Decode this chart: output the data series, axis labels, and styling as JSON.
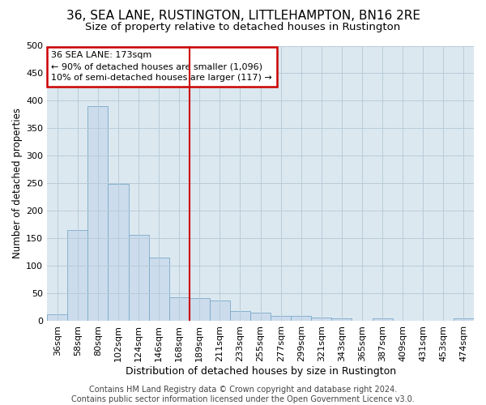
{
  "title1": "36, SEA LANE, RUSTINGTON, LITTLEHAMPTON, BN16 2RE",
  "title2": "Size of property relative to detached houses in Rustington",
  "xlabel": "Distribution of detached houses by size in Rustington",
  "ylabel": "Number of detached properties",
  "categories": [
    "36sqm",
    "58sqm",
    "80sqm",
    "102sqm",
    "124sqm",
    "146sqm",
    "168sqm",
    "189sqm",
    "211sqm",
    "233sqm",
    "255sqm",
    "277sqm",
    "299sqm",
    "321sqm",
    "343sqm",
    "365sqm",
    "387sqm",
    "409sqm",
    "431sqm",
    "453sqm",
    "474sqm"
  ],
  "values": [
    13,
    166,
    390,
    249,
    157,
    115,
    44,
    42,
    38,
    18,
    15,
    10,
    9,
    6,
    5,
    0,
    5,
    0,
    0,
    0,
    5
  ],
  "bar_color": "#ccdcec",
  "bar_edge_color": "#7aaac8",
  "vline_color": "#cc0000",
  "annotation_line1": "36 SEA LANE: 173sqm",
  "annotation_line2": "← 90% of detached houses are smaller (1,096)",
  "annotation_line3": "10% of semi-detached houses are larger (117) →",
  "annotation_box_color": "#cc0000",
  "ylim": [
    0,
    500
  ],
  "yticks": [
    0,
    50,
    100,
    150,
    200,
    250,
    300,
    350,
    400,
    450,
    500
  ],
  "footer": "Contains HM Land Registry data © Crown copyright and database right 2024.\nContains public sector information licensed under the Open Government Licence v3.0.",
  "plot_bg_color": "#dce8f0",
  "grid_color": "#b8ccd8",
  "title1_fontsize": 11,
  "title2_fontsize": 9.5,
  "xlabel_fontsize": 9,
  "ylabel_fontsize": 8.5,
  "tick_fontsize": 8,
  "footer_fontsize": 7,
  "vline_x_index": 7
}
